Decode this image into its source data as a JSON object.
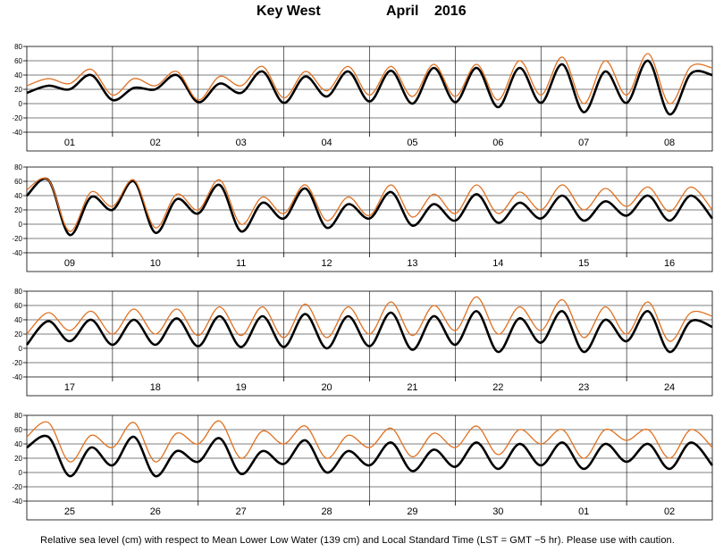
{
  "title": {
    "station": "Key West",
    "month": "April",
    "year": "2016"
  },
  "footnote": "Relative sea level (cm) with respect to Mean Lower Low Water (139 cm) and Local Standard Time (LST = GMT −5 hr). Please use with caution.",
  "colors": {
    "observed": "#000000",
    "predicted": "#e07020",
    "grid": "#000000"
  },
  "chart_data": [
    {
      "type": "line",
      "ylim": [
        -40,
        80
      ],
      "yticks": [
        -40,
        -20,
        0,
        20,
        40,
        60,
        80
      ],
      "categories": [
        "01",
        "02",
        "03",
        "04",
        "05",
        "06",
        "07",
        "08"
      ],
      "series": [
        {
          "values": [
            [
              15,
              25,
              20,
              40,
              5
            ],
            [
              5,
              22,
              20,
              40,
              2
            ],
            [
              2,
              28,
              15,
              45,
              1
            ],
            [
              1,
              38,
              10,
              45,
              3
            ],
            [
              3,
              46,
              0,
              50,
              2
            ],
            [
              2,
              50,
              -5,
              50,
              1
            ],
            [
              1,
              55,
              -12,
              45,
              1
            ],
            [
              1,
              60,
              -15,
              42,
              40
            ]
          ]
        },
        {
          "values": [
            [
              25,
              35,
              28,
              48,
              12
            ],
            [
              12,
              35,
              25,
              45,
              5
            ],
            [
              5,
              38,
              25,
              52,
              8
            ],
            [
              8,
              45,
              18,
              52,
              12
            ],
            [
              12,
              52,
              10,
              55,
              10
            ],
            [
              10,
              55,
              5,
              60,
              12
            ],
            [
              12,
              65,
              0,
              60,
              12
            ],
            [
              12,
              70,
              0,
              52,
              50
            ]
          ]
        }
      ]
    },
    {
      "type": "line",
      "ylim": [
        -40,
        80
      ],
      "yticks": [
        -40,
        -20,
        0,
        20,
        40,
        60,
        80
      ],
      "categories": [
        "09",
        "10",
        "11",
        "12",
        "13",
        "14",
        "15",
        "16"
      ],
      "series": [
        {
          "values": [
            [
              40,
              62,
              -15,
              38,
              20
            ],
            [
              20,
              60,
              -12,
              35,
              15
            ],
            [
              15,
              55,
              -10,
              30,
              8
            ],
            [
              8,
              50,
              -5,
              28,
              8
            ],
            [
              8,
              45,
              -2,
              28,
              5
            ],
            [
              5,
              42,
              2,
              30,
              8
            ],
            [
              8,
              40,
              5,
              32,
              12
            ],
            [
              12,
              40,
              5,
              40,
              8
            ]
          ]
        },
        {
          "values": [
            [
              48,
              62,
              -10,
              45,
              25
            ],
            [
              25,
              62,
              -5,
              42,
              20
            ],
            [
              20,
              62,
              0,
              38,
              15
            ],
            [
              15,
              55,
              5,
              38,
              12
            ],
            [
              12,
              55,
              10,
              42,
              15
            ],
            [
              15,
              55,
              15,
              45,
              20
            ],
            [
              20,
              55,
              20,
              50,
              25
            ],
            [
              25,
              52,
              18,
              52,
              20
            ]
          ]
        }
      ]
    },
    {
      "type": "line",
      "ylim": [
        -40,
        80
      ],
      "yticks": [
        -40,
        -20,
        0,
        20,
        40,
        60,
        80
      ],
      "categories": [
        "17",
        "18",
        "19",
        "20",
        "21",
        "22",
        "23",
        "24"
      ],
      "series": [
        {
          "values": [
            [
              5,
              38,
              10,
              40,
              5
            ],
            [
              5,
              40,
              5,
              42,
              3
            ],
            [
              3,
              45,
              2,
              45,
              2
            ],
            [
              2,
              48,
              0,
              45,
              3
            ],
            [
              3,
              50,
              -2,
              45,
              5
            ],
            [
              5,
              52,
              -5,
              42,
              8
            ],
            [
              8,
              52,
              -5,
              40,
              10
            ],
            [
              10,
              52,
              -5,
              38,
              30
            ]
          ]
        },
        {
          "values": [
            [
              20,
              50,
              25,
              52,
              20
            ],
            [
              20,
              55,
              20,
              55,
              18
            ],
            [
              18,
              58,
              18,
              58,
              15
            ],
            [
              15,
              62,
              15,
              58,
              20
            ],
            [
              20,
              65,
              18,
              60,
              25
            ],
            [
              25,
              72,
              20,
              58,
              25
            ],
            [
              25,
              68,
              15,
              58,
              20
            ],
            [
              20,
              65,
              10,
              50,
              45
            ]
          ]
        }
      ]
    },
    {
      "type": "line",
      "ylim": [
        -40,
        80
      ],
      "yticks": [
        -40,
        -20,
        0,
        20,
        40,
        60,
        80
      ],
      "categories": [
        "25",
        "26",
        "27",
        "28",
        "29",
        "30",
        "01",
        "02"
      ],
      "series": [
        {
          "values": [
            [
              35,
              50,
              -5,
              35,
              10
            ],
            [
              10,
              50,
              -5,
              30,
              15
            ],
            [
              15,
              48,
              -2,
              30,
              12
            ],
            [
              12,
              45,
              0,
              30,
              10
            ],
            [
              10,
              42,
              2,
              32,
              8
            ],
            [
              8,
              42,
              5,
              40,
              10
            ],
            [
              10,
              42,
              5,
              40,
              15
            ],
            [
              15,
              40,
              5,
              42,
              10
            ]
          ]
        },
        {
          "values": [
            [
              50,
              70,
              15,
              52,
              35
            ],
            [
              35,
              70,
              15,
              55,
              40
            ],
            [
              40,
              72,
              20,
              58,
              40
            ],
            [
              40,
              65,
              20,
              52,
              35
            ],
            [
              35,
              62,
              22,
              55,
              35
            ],
            [
              35,
              65,
              25,
              60,
              40
            ],
            [
              40,
              60,
              20,
              60,
              45
            ],
            [
              45,
              60,
              20,
              60,
              35
            ]
          ]
        }
      ]
    }
  ]
}
